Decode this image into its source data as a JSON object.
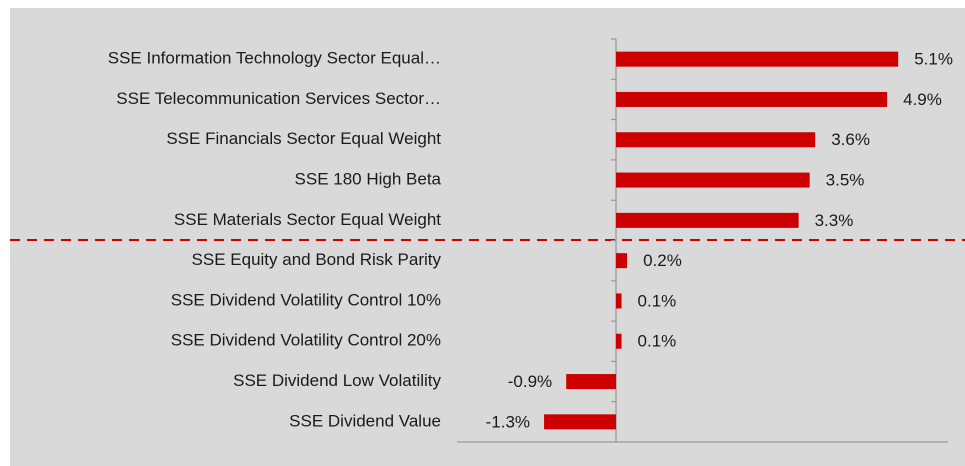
{
  "chart_data": {
    "type": "bar",
    "orientation": "horizontal",
    "categories": [
      "SSE Information Technology Sector Equal…",
      "SSE Telecommunication Services Sector…",
      "SSE Financials Sector Equal Weight",
      "SSE 180 High Beta",
      "SSE Materials Sector Equal Weight",
      "SSE Equity and Bond Risk Parity",
      "SSE Dividend Volatility Control 10%",
      "SSE Dividend Volatility Control 20%",
      "SSE Dividend Low Volatility",
      "SSE Dividend Value"
    ],
    "values": [
      5.1,
      4.9,
      3.6,
      3.5,
      3.3,
      0.2,
      0.1,
      0.1,
      -0.9,
      -1.3
    ],
    "value_labels": [
      "5.1%",
      "4.9%",
      "3.6%",
      "3.5%",
      "3.3%",
      "0.2%",
      "0.1%",
      "0.1%",
      "-0.9%",
      "-1.3%"
    ],
    "color": "#cc0000",
    "xlim": [
      -3,
      6
    ]
  }
}
